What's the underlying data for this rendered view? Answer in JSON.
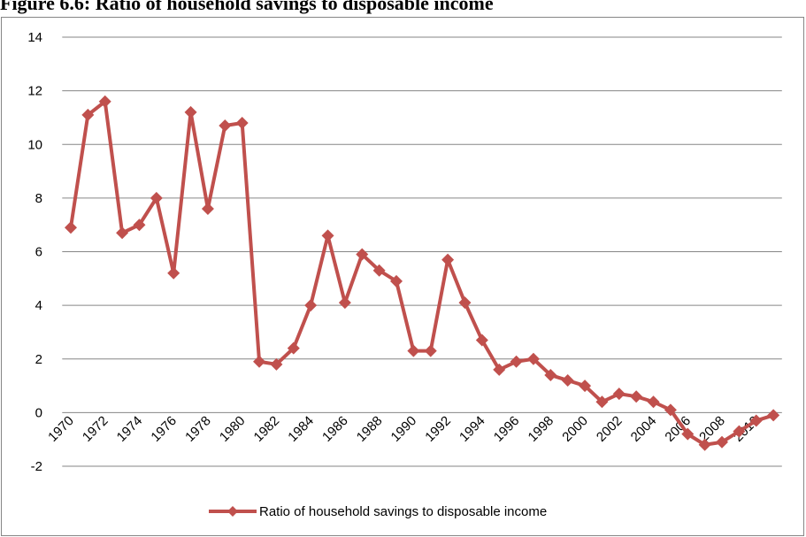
{
  "chart_data": {
    "type": "line",
    "title": "Figure 6.6: Ratio of household savings to disposable income",
    "categories": [
      "1970",
      null,
      "1972",
      null,
      "1974",
      null,
      "1976",
      null,
      "1978",
      null,
      "1980",
      null,
      "1982",
      null,
      "1984",
      null,
      "1986",
      null,
      "1988",
      null,
      "1990",
      null,
      "1992",
      null,
      "1994",
      null,
      "1996",
      null,
      "1998",
      null,
      "2000",
      null,
      "2002",
      null,
      "2004",
      null,
      "2006",
      null,
      "2008",
      null,
      "2010",
      null
    ],
    "series": [
      {
        "name": "Ratio of household savings to disposable income",
        "color": "#c0504d",
        "values": [
          6.9,
          11.1,
          11.6,
          6.7,
          7.0,
          8.0,
          5.2,
          11.2,
          7.6,
          10.7,
          10.8,
          1.9,
          1.8,
          2.4,
          4.0,
          6.6,
          4.1,
          5.9,
          5.3,
          4.9,
          2.3,
          2.3,
          5.7,
          4.1,
          2.7,
          1.6,
          1.9,
          2.0,
          1.4,
          1.2,
          1.0,
          0.4,
          0.7,
          0.6,
          0.4,
          0.1,
          -0.8,
          -1.2,
          -1.1,
          -0.7,
          -0.3,
          -0.1
        ]
      }
    ],
    "ylim": [
      -2,
      14
    ],
    "yticks": [
      -2,
      0,
      2,
      4,
      6,
      8,
      10,
      12,
      14
    ],
    "grid": true,
    "legend": "bottom"
  }
}
